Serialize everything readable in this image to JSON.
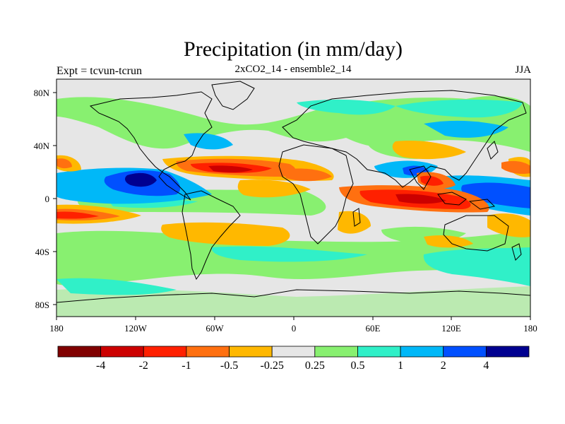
{
  "header": {
    "title": "Precipitation (in mm/day)",
    "subtitle": "2xCO2_14 - ensemble2_14",
    "experiment": "Expt = tcvun-tcrun",
    "season": "JJA"
  },
  "axes": {
    "lat_ticks": [
      "80N",
      "40N",
      "0",
      "40S",
      "80S"
    ],
    "lon_ticks": [
      "180",
      "120W",
      "60W",
      "0",
      "60E",
      "120E",
      "180"
    ]
  },
  "colorbar": {
    "colors": [
      "#800000",
      "#cc0000",
      "#ff2000",
      "#ff7010",
      "#ffb800",
      "#e6e6e6",
      "#88f070",
      "#30f0c8",
      "#00b8f8",
      "#0050ff",
      "#000090"
    ],
    "labels": [
      "-4",
      "-2",
      "-1",
      "-0.5",
      "-0.25",
      "0.25",
      "0.5",
      "1",
      "2",
      "4"
    ]
  },
  "map_colors": {
    "background": "#e6e6e6",
    "coastline": "#000000"
  }
}
